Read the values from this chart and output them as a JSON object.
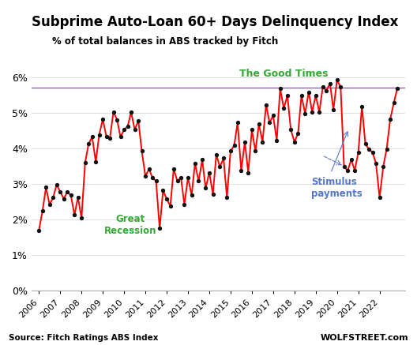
{
  "title": "Subprime Auto-Loan 60+ Days Delinquency Index",
  "subtitle": "% of total balances in ABS tracked by Fitch",
  "source_left": "Source: Fitch Ratings ABS Index",
  "source_right": "WOLFSTREET.com",
  "ylim": [
    0,
    0.065
  ],
  "yticks": [
    0,
    0.01,
    0.02,
    0.03,
    0.04,
    0.05,
    0.06
  ],
  "ytick_labels": [
    "0%",
    "1%",
    "2%",
    "3%",
    "4%",
    "5%",
    "6%"
  ],
  "reference_line": 0.057,
  "reference_color": "#9B59B6",
  "good_times_label": "The Good Times",
  "good_times_color": "#33AA33",
  "great_recession_label": "Great\nRecession",
  "great_recession_color": "#33AA33",
  "stimulus_label": "Stimulus\npayments",
  "stimulus_color": "#5577CC",
  "line_color": "#FF0000",
  "dot_color": "#111111",
  "background_color": "#FFFFFF",
  "xlim": [
    2005.65,
    2023.2
  ],
  "data": [
    [
      2006.0,
      0.017
    ],
    [
      2006.17,
      0.0225
    ],
    [
      2006.33,
      0.029
    ],
    [
      2006.5,
      0.0242
    ],
    [
      2006.67,
      0.0262
    ],
    [
      2006.83,
      0.0298
    ],
    [
      2007.0,
      0.0278
    ],
    [
      2007.17,
      0.0258
    ],
    [
      2007.33,
      0.0278
    ],
    [
      2007.5,
      0.0268
    ],
    [
      2007.67,
      0.0213
    ],
    [
      2007.83,
      0.0262
    ],
    [
      2008.0,
      0.0205
    ],
    [
      2008.17,
      0.036
    ],
    [
      2008.33,
      0.0412
    ],
    [
      2008.5,
      0.0432
    ],
    [
      2008.67,
      0.0362
    ],
    [
      2008.83,
      0.0438
    ],
    [
      2009.0,
      0.0482
    ],
    [
      2009.17,
      0.0432
    ],
    [
      2009.33,
      0.0428
    ],
    [
      2009.5,
      0.0502
    ],
    [
      2009.67,
      0.048
    ],
    [
      2009.83,
      0.0432
    ],
    [
      2010.0,
      0.0452
    ],
    [
      2010.17,
      0.0462
    ],
    [
      2010.33,
      0.0502
    ],
    [
      2010.5,
      0.0452
    ],
    [
      2010.67,
      0.0478
    ],
    [
      2010.83,
      0.0392
    ],
    [
      2011.0,
      0.0322
    ],
    [
      2011.17,
      0.0342
    ],
    [
      2011.33,
      0.0318
    ],
    [
      2011.5,
      0.0308
    ],
    [
      2011.67,
      0.0175
    ],
    [
      2011.83,
      0.0282
    ],
    [
      2012.0,
      0.0258
    ],
    [
      2012.17,
      0.0238
    ],
    [
      2012.33,
      0.0342
    ],
    [
      2012.5,
      0.0308
    ],
    [
      2012.67,
      0.0318
    ],
    [
      2012.83,
      0.0242
    ],
    [
      2013.0,
      0.0318
    ],
    [
      2013.17,
      0.0268
    ],
    [
      2013.33,
      0.0358
    ],
    [
      2013.5,
      0.0308
    ],
    [
      2013.67,
      0.0368
    ],
    [
      2013.83,
      0.0288
    ],
    [
      2014.0,
      0.0332
    ],
    [
      2014.17,
      0.0272
    ],
    [
      2014.33,
      0.0382
    ],
    [
      2014.5,
      0.0348
    ],
    [
      2014.67,
      0.0372
    ],
    [
      2014.83,
      0.0262
    ],
    [
      2015.0,
      0.0392
    ],
    [
      2015.17,
      0.0408
    ],
    [
      2015.33,
      0.0472
    ],
    [
      2015.5,
      0.0338
    ],
    [
      2015.67,
      0.0418
    ],
    [
      2015.83,
      0.0332
    ],
    [
      2016.0,
      0.0452
    ],
    [
      2016.17,
      0.0392
    ],
    [
      2016.33,
      0.0468
    ],
    [
      2016.5,
      0.0418
    ],
    [
      2016.67,
      0.0522
    ],
    [
      2016.83,
      0.0472
    ],
    [
      2017.0,
      0.0492
    ],
    [
      2017.17,
      0.0422
    ],
    [
      2017.33,
      0.0568
    ],
    [
      2017.5,
      0.0512
    ],
    [
      2017.67,
      0.0548
    ],
    [
      2017.83,
      0.0452
    ],
    [
      2018.0,
      0.0418
    ],
    [
      2018.17,
      0.0442
    ],
    [
      2018.33,
      0.0548
    ],
    [
      2018.5,
      0.0498
    ],
    [
      2018.67,
      0.0558
    ],
    [
      2018.83,
      0.0502
    ],
    [
      2019.0,
      0.0548
    ],
    [
      2019.17,
      0.0502
    ],
    [
      2019.33,
      0.0572
    ],
    [
      2019.5,
      0.0562
    ],
    [
      2019.67,
      0.0582
    ],
    [
      2019.83,
      0.0508
    ],
    [
      2020.0,
      0.0592
    ],
    [
      2020.17,
      0.0572
    ],
    [
      2020.33,
      0.0348
    ],
    [
      2020.5,
      0.0338
    ],
    [
      2020.67,
      0.0368
    ],
    [
      2020.83,
      0.0338
    ],
    [
      2021.0,
      0.0388
    ],
    [
      2021.17,
      0.0518
    ],
    [
      2021.33,
      0.0412
    ],
    [
      2021.5,
      0.0398
    ],
    [
      2021.67,
      0.0388
    ],
    [
      2021.83,
      0.0358
    ],
    [
      2022.0,
      0.0262
    ],
    [
      2022.17,
      0.0348
    ],
    [
      2022.33,
      0.0398
    ],
    [
      2022.5,
      0.0482
    ],
    [
      2022.67,
      0.0528
    ],
    [
      2022.83,
      0.0568
    ]
  ]
}
